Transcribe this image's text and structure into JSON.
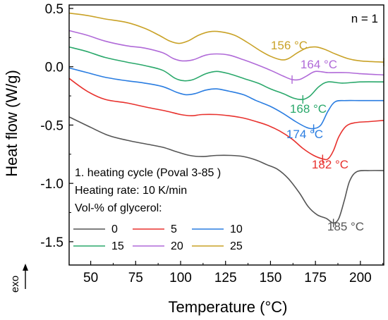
{
  "chart_data": {
    "type": "line",
    "xlabel": "Temperature (°C)",
    "ylabel": "Heat flow (W/g)",
    "xlim": [
      38,
      213
    ],
    "ylim": [
      -1.7,
      0.53
    ],
    "xticks": [
      "50",
      "75",
      "100",
      "125",
      "150",
      "175",
      "200"
    ],
    "yticks": [
      "0.5",
      "0.0",
      "-0.5",
      "-1.0",
      "-1.5"
    ],
    "annotation_top_right": "n = 1",
    "exo_label": "exo",
    "info": {
      "line1": "1. heating cycle (Poval 3-85 )",
      "line2": "Heating rate: 10 K/min",
      "line3": "Vol-% of glycerol:"
    },
    "series": [
      {
        "name": "0",
        "color": "#555555",
        "peak_label": "185 °C",
        "points": [
          [
            38,
            -0.43
          ],
          [
            50,
            -0.52
          ],
          [
            60,
            -0.59
          ],
          [
            70,
            -0.63
          ],
          [
            80,
            -0.66
          ],
          [
            90,
            -0.69
          ],
          [
            98,
            -0.73
          ],
          [
            105,
            -0.76
          ],
          [
            112,
            -0.77
          ],
          [
            120,
            -0.76
          ],
          [
            128,
            -0.76
          ],
          [
            135,
            -0.77
          ],
          [
            142,
            -0.8
          ],
          [
            148,
            -0.84
          ],
          [
            154,
            -0.88
          ],
          [
            160,
            -0.96
          ],
          [
            166,
            -1.08
          ],
          [
            171,
            -1.2
          ],
          [
            176,
            -1.27
          ],
          [
            181,
            -1.3
          ],
          [
            185,
            -1.34
          ],
          [
            188,
            -1.3
          ],
          [
            191,
            -1.15
          ],
          [
            194,
            -0.98
          ],
          [
            198,
            -0.9
          ],
          [
            205,
            -0.89
          ],
          [
            213,
            -0.89
          ]
        ]
      },
      {
        "name": "5",
        "color": "#e8322e",
        "peak_label": "182 °C",
        "points": [
          [
            38,
            -0.1
          ],
          [
            48,
            -0.21
          ],
          [
            58,
            -0.28
          ],
          [
            70,
            -0.31
          ],
          [
            82,
            -0.35
          ],
          [
            92,
            -0.38
          ],
          [
            100,
            -0.41
          ],
          [
            106,
            -0.42
          ],
          [
            112,
            -0.41
          ],
          [
            120,
            -0.41
          ],
          [
            127,
            -0.42
          ],
          [
            135,
            -0.44
          ],
          [
            142,
            -0.47
          ],
          [
            148,
            -0.5
          ],
          [
            155,
            -0.55
          ],
          [
            162,
            -0.62
          ],
          [
            168,
            -0.7
          ],
          [
            174,
            -0.76
          ],
          [
            179,
            -0.79
          ],
          [
            182,
            -0.79
          ],
          [
            185,
            -0.72
          ],
          [
            188,
            -0.6
          ],
          [
            192,
            -0.51
          ],
          [
            197,
            -0.48
          ],
          [
            205,
            -0.47
          ],
          [
            213,
            -0.46
          ]
        ]
      },
      {
        "name": "10",
        "color": "#2a7de1",
        "peak_label": "174 °C",
        "points": [
          [
            38,
            -0.01
          ],
          [
            48,
            -0.05
          ],
          [
            58,
            -0.09
          ],
          [
            70,
            -0.12
          ],
          [
            80,
            -0.14
          ],
          [
            90,
            -0.17
          ],
          [
            98,
            -0.22
          ],
          [
            103,
            -0.24
          ],
          [
            108,
            -0.23
          ],
          [
            114,
            -0.2
          ],
          [
            120,
            -0.19
          ],
          [
            127,
            -0.21
          ],
          [
            135,
            -0.24
          ],
          [
            142,
            -0.29
          ],
          [
            150,
            -0.34
          ],
          [
            157,
            -0.4
          ],
          [
            164,
            -0.47
          ],
          [
            170,
            -0.52
          ],
          [
            174,
            -0.53
          ],
          [
            178,
            -0.5
          ],
          [
            182,
            -0.38
          ],
          [
            186,
            -0.3
          ],
          [
            192,
            -0.29
          ],
          [
            200,
            -0.29
          ],
          [
            213,
            -0.29
          ]
        ]
      },
      {
        "name": "15",
        "color": "#2aa86b",
        "peak_label": "168 °C",
        "points": [
          [
            38,
            0.17
          ],
          [
            48,
            0.13
          ],
          [
            58,
            0.08
          ],
          [
            70,
            0.04
          ],
          [
            80,
            0.01
          ],
          [
            90,
            -0.03
          ],
          [
            97,
            -0.1
          ],
          [
            102,
            -0.12
          ],
          [
            107,
            -0.11
          ],
          [
            114,
            -0.06
          ],
          [
            120,
            -0.04
          ],
          [
            127,
            -0.06
          ],
          [
            135,
            -0.1
          ],
          [
            143,
            -0.14
          ],
          [
            150,
            -0.19
          ],
          [
            157,
            -0.23
          ],
          [
            163,
            -0.27
          ],
          [
            168,
            -0.28
          ],
          [
            172,
            -0.25
          ],
          [
            177,
            -0.17
          ],
          [
            182,
            -0.13
          ],
          [
            190,
            -0.14
          ],
          [
            200,
            -0.13
          ],
          [
            213,
            -0.13
          ]
        ]
      },
      {
        "name": "20",
        "color": "#b06ad8",
        "peak_label": "164 °C",
        "points": [
          [
            38,
            0.31
          ],
          [
            48,
            0.27
          ],
          [
            58,
            0.22
          ],
          [
            70,
            0.18
          ],
          [
            80,
            0.16
          ],
          [
            90,
            0.12
          ],
          [
            96,
            0.07
          ],
          [
            101,
            0.05
          ],
          [
            107,
            0.06
          ],
          [
            114,
            0.1
          ],
          [
            120,
            0.11
          ],
          [
            127,
            0.1
          ],
          [
            135,
            0.06
          ],
          [
            142,
            0.02
          ],
          [
            150,
            -0.03
          ],
          [
            157,
            -0.08
          ],
          [
            162,
            -0.11
          ],
          [
            166,
            -0.11
          ],
          [
            170,
            -0.08
          ],
          [
            175,
            -0.04
          ],
          [
            182,
            -0.05
          ],
          [
            192,
            -0.05
          ],
          [
            200,
            -0.06
          ],
          [
            213,
            -0.07
          ]
        ]
      },
      {
        "name": "25",
        "color": "#c9a227",
        "peak_label": "156 °C",
        "points": [
          [
            38,
            0.46
          ],
          [
            48,
            0.44
          ],
          [
            58,
            0.41
          ],
          [
            70,
            0.38
          ],
          [
            80,
            0.33
          ],
          [
            88,
            0.27
          ],
          [
            94,
            0.22
          ],
          [
            99,
            0.2
          ],
          [
            104,
            0.22
          ],
          [
            110,
            0.27
          ],
          [
            116,
            0.3
          ],
          [
            122,
            0.3
          ],
          [
            130,
            0.27
          ],
          [
            137,
            0.21
          ],
          [
            144,
            0.14
          ],
          [
            150,
            0.09
          ],
          [
            156,
            0.06
          ],
          [
            160,
            0.07
          ],
          [
            165,
            0.12
          ],
          [
            170,
            0.16
          ],
          [
            175,
            0.17
          ],
          [
            180,
            0.15
          ],
          [
            186,
            0.11
          ],
          [
            193,
            0.07
          ],
          [
            200,
            0.05
          ],
          [
            213,
            0.04
          ]
        ]
      }
    ]
  }
}
